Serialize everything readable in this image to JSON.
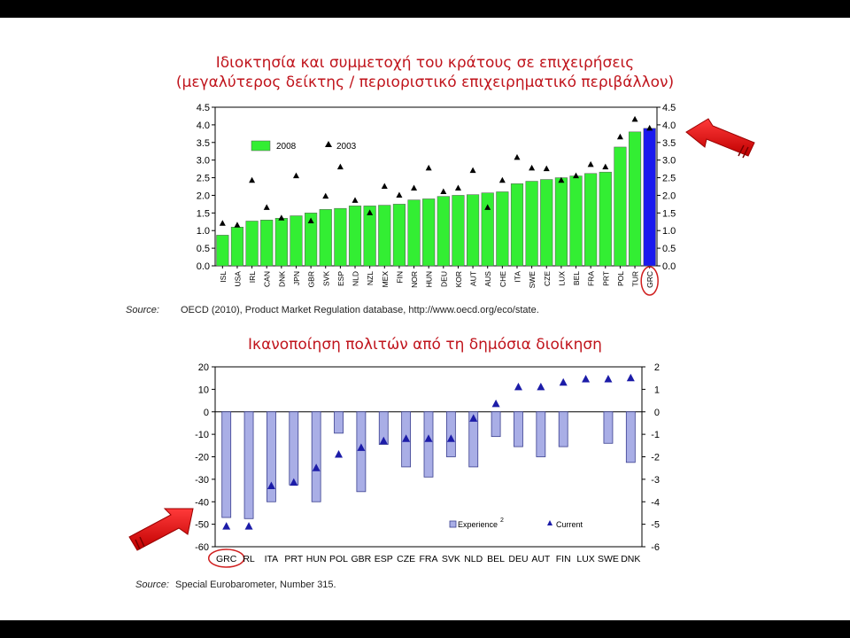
{
  "slide": {
    "title1_line1": "Ιδιοκτησία και συμμετοχή του κράτους σε επιχειρήσεις",
    "title1_line2": "(μεγαλύτερος δείκτης / περιοριστικό επιχειρηματικό περιβάλλον)",
    "title2": "Ικανοποίηση πολιτών από τη δημόσια διοίκηση",
    "source1_label": "Source:",
    "source1_text": "OECD (2010), Product Market Regulation database, http://www.oecd.org/eco/state.",
    "source2_label": "Source:",
    "source2_text": "Special Eurobarometer, Number 315."
  },
  "chart_data": [
    {
      "type": "bar",
      "categories": [
        "ISL",
        "USA",
        "IRL",
        "CAN",
        "DNK",
        "JPN",
        "GBR",
        "SVK",
        "ESP",
        "NLD",
        "NZL",
        "MEX",
        "FIN",
        "NOR",
        "HUN",
        "DEU",
        "KOR",
        "AUT",
        "AUS",
        "CHE",
        "ITA",
        "SWE",
        "CZE",
        "LUX",
        "BEL",
        "FRA",
        "PRT",
        "POL",
        "TUR",
        "GRC"
      ],
      "series": [
        {
          "name": "2008",
          "kind": "bar",
          "color": "#33ee33",
          "highlight_color": "#1a1aee",
          "values": [
            0.87,
            1.1,
            1.27,
            1.3,
            1.35,
            1.42,
            1.5,
            1.6,
            1.63,
            1.7,
            1.7,
            1.72,
            1.75,
            1.87,
            1.9,
            1.97,
            2.0,
            2.02,
            2.07,
            2.1,
            2.33,
            2.4,
            2.45,
            2.5,
            2.55,
            2.62,
            2.66,
            3.37,
            3.8,
            3.9
          ]
        },
        {
          "name": "2003",
          "kind": "marker",
          "color": "#000000",
          "values": [
            1.2,
            1.15,
            2.42,
            1.65,
            1.35,
            2.55,
            1.27,
            1.97,
            2.8,
            1.85,
            1.5,
            2.25,
            2.0,
            2.2,
            2.77,
            2.1,
            2.2,
            2.7,
            1.65,
            2.42,
            3.07,
            2.77,
            2.75,
            2.42,
            2.55,
            2.87,
            2.8,
            3.65,
            4.15,
            3.9
          ]
        }
      ],
      "ylim": [
        0,
        4.5
      ],
      "yticks": [
        "0.0",
        "0.5",
        "1.0",
        "1.5",
        "2.0",
        "2.5",
        "3.0",
        "3.5",
        "4.0",
        "4.5"
      ],
      "highlight": "GRC",
      "legend_position": "top-left",
      "grid": false
    },
    {
      "type": "bar",
      "categories": [
        "GRC",
        "RL",
        "ITA",
        "PRT",
        "HUN",
        "POL",
        "GBR",
        "ESP",
        "CZE",
        "FRA",
        "SVK",
        "NLD",
        "BEL",
        "DEU",
        "AUT",
        "FIN",
        "LUX",
        "SWE",
        "DNK"
      ],
      "series": [
        {
          "name": "Experience",
          "legend_label": "Experience",
          "legend_sup": "2",
          "kind": "bar",
          "axis": "left",
          "color": "#a9aee6",
          "values": [
            -47,
            -47.5,
            -40,
            -32.5,
            -40,
            -9.5,
            -35.5,
            -14.5,
            -24.5,
            -29,
            -20,
            -24.5,
            -11,
            -15.5,
            -20,
            -15.5,
            0,
            -14,
            -22.5
          ]
        },
        {
          "name": "Current",
          "kind": "marker",
          "axis": "right",
          "color": "#1c1ca8",
          "values": [
            -5.1,
            -5.1,
            -3.3,
            -3.15,
            -2.5,
            -1.9,
            -1.6,
            -1.3,
            -1.2,
            -1.2,
            -1.2,
            -0.3,
            0.35,
            1.1,
            1.1,
            1.3,
            1.45,
            1.45,
            1.5
          ]
        }
      ],
      "ylim": [
        -60,
        20
      ],
      "ylim_right": [
        -6,
        2
      ],
      "yticks": [
        "20",
        "10",
        "0",
        "-10",
        "-20",
        "-30",
        "-40",
        "-50",
        "-60"
      ],
      "yticks_right": [
        "2",
        "1",
        "0",
        "-1",
        "-2",
        "-3",
        "-4",
        "-5",
        "-6"
      ],
      "highlight": "GRC",
      "legend_position": "bottom-right",
      "grid": false
    }
  ]
}
